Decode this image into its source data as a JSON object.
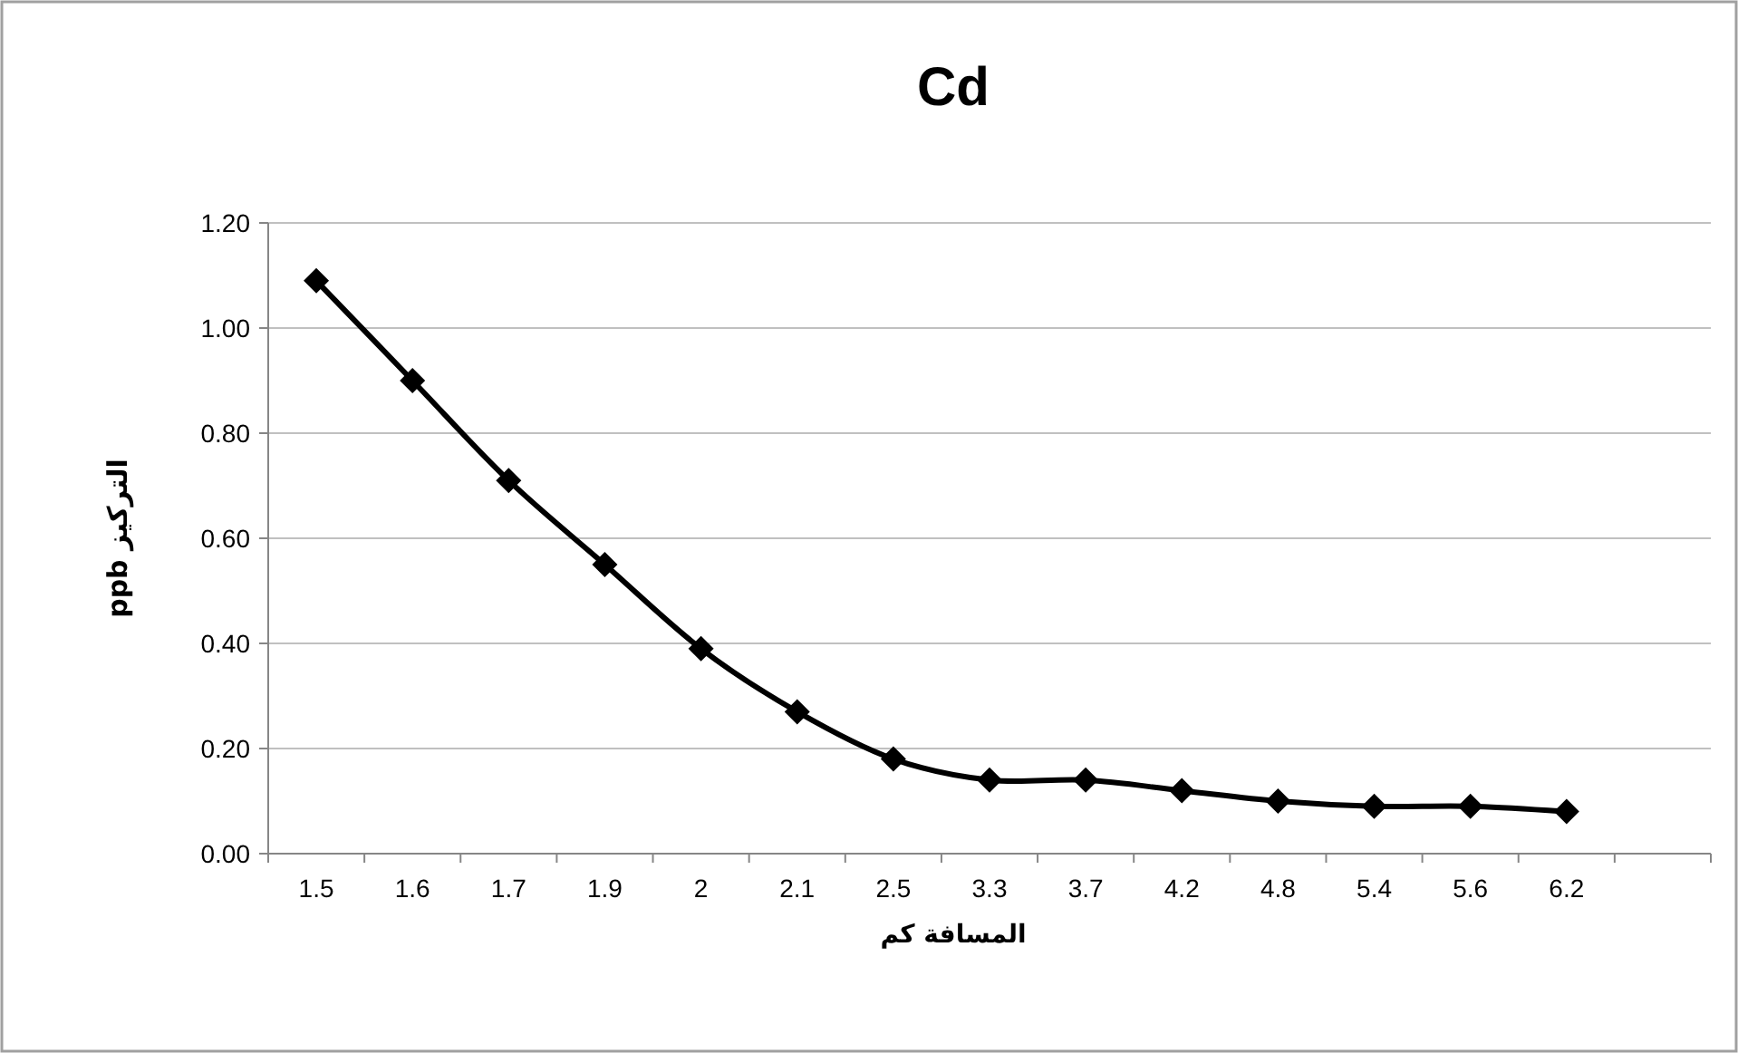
{
  "chart_data": {
    "type": "line",
    "title": "Cd",
    "xlabel": "المسافة كم",
    "ylabel": "التركيز ppb",
    "categories": [
      "1.5",
      "1.6",
      "1.7",
      "1.9",
      "2",
      "2.1",
      "2.5",
      "3.3",
      "3.7",
      "4.2",
      "4.8",
      "5.4",
      "5.6",
      "6.2",
      null
    ],
    "series": [
      {
        "color": "#000000",
        "values": [
          1.09,
          0.9,
          0.71,
          0.55,
          0.39,
          0.27,
          0.18,
          0.14,
          0.14,
          0.12,
          0.1,
          0.09,
          0.09,
          0.08,
          null
        ]
      }
    ],
    "ylim": [
      0,
      1.2
    ],
    "yticks": [
      {
        "value": 0,
        "label": "0.00"
      },
      {
        "value": 0.2,
        "label": "0.20"
      },
      {
        "value": 0.4,
        "label": "0.40"
      },
      {
        "value": 0.6,
        "label": "0.60"
      },
      {
        "value": 0.8,
        "label": "0.80"
      },
      {
        "value": 1.0,
        "label": "1.00"
      },
      {
        "value": 1.2,
        "label": "1.20"
      }
    ],
    "grid": "y",
    "marker": "diamond",
    "line_style": "solid"
  }
}
